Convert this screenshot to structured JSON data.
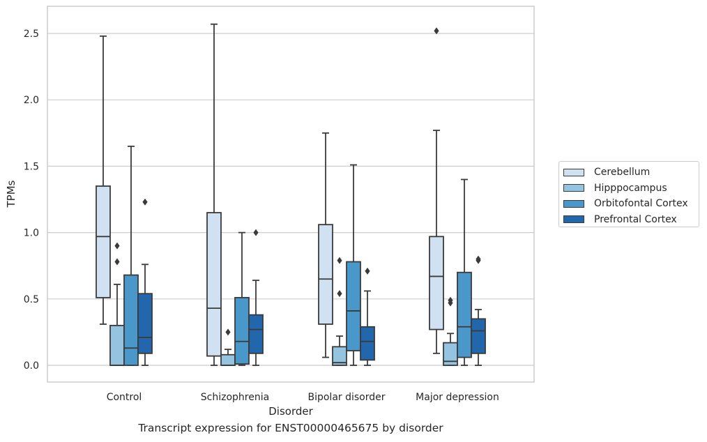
{
  "caption": "Transcript expression for ENST00000465675 by disorder",
  "chart_data": {
    "type": "box",
    "xlabel": "Disorder",
    "ylabel": "TPMs",
    "ylim": [
      -0.12,
      2.71
    ],
    "yticks": [
      0.0,
      0.5,
      1.0,
      1.5,
      2.0,
      2.5
    ],
    "ytick_labels": [
      "0.0",
      "0.5",
      "1.0",
      "1.5",
      "2.0",
      "2.5"
    ],
    "grid": "horizontal",
    "legend_position": "right",
    "categories": [
      "Control",
      "Schizophrenia",
      "Bipolar disorder",
      "Major depression"
    ],
    "series": [
      {
        "name": "Cerebellum",
        "color": "#d0e1f2",
        "boxes": [
          {
            "whisker_low": 0.31,
            "q1": 0.51,
            "median": 0.97,
            "q3": 1.35,
            "whisker_high": 2.48,
            "outliers": []
          },
          {
            "whisker_low": 0.0,
            "q1": 0.07,
            "median": 0.43,
            "q3": 1.15,
            "whisker_high": 2.57,
            "outliers": []
          },
          {
            "whisker_low": 0.06,
            "q1": 0.31,
            "median": 0.65,
            "q3": 1.06,
            "whisker_high": 1.75,
            "outliers": []
          },
          {
            "whisker_low": 0.09,
            "q1": 0.27,
            "median": 0.67,
            "q3": 0.97,
            "whisker_high": 1.77,
            "outliers": [
              2.52
            ]
          }
        ]
      },
      {
        "name": "Hipppocampus",
        "color": "#94c4df",
        "boxes": [
          {
            "whisker_low": 0.0,
            "q1": 0.0,
            "median": 0.0,
            "q3": 0.3,
            "whisker_high": 0.61,
            "outliers": [
              0.9,
              0.78
            ]
          },
          {
            "whisker_low": 0.0,
            "q1": 0.0,
            "median": 0.0,
            "q3": 0.08,
            "whisker_high": 0.12,
            "outliers": [
              0.25
            ]
          },
          {
            "whisker_low": 0.0,
            "q1": 0.0,
            "median": 0.02,
            "q3": 0.14,
            "whisker_high": 0.22,
            "outliers": [
              0.79,
              0.54
            ]
          },
          {
            "whisker_low": 0.0,
            "q1": 0.0,
            "median": 0.03,
            "q3": 0.17,
            "whisker_high": 0.24,
            "outliers": [
              0.49,
              0.47
            ]
          }
        ]
      },
      {
        "name": "Orbitofontal Cortex",
        "color": "#4a98c9",
        "boxes": [
          {
            "whisker_low": 0.0,
            "q1": 0.0,
            "median": 0.13,
            "q3": 0.68,
            "whisker_high": 1.65,
            "outliers": []
          },
          {
            "whisker_low": 0.0,
            "q1": 0.01,
            "median": 0.18,
            "q3": 0.51,
            "whisker_high": 1.0,
            "outliers": []
          },
          {
            "whisker_low": 0.0,
            "q1": 0.11,
            "median": 0.41,
            "q3": 0.78,
            "whisker_high": 1.51,
            "outliers": []
          },
          {
            "whisker_low": 0.0,
            "q1": 0.06,
            "median": 0.29,
            "q3": 0.7,
            "whisker_high": 1.4,
            "outliers": []
          }
        ]
      },
      {
        "name": "Prefrontal Cortex",
        "color": "#2266ac",
        "boxes": [
          {
            "whisker_low": 0.0,
            "q1": 0.09,
            "median": 0.21,
            "q3": 0.54,
            "whisker_high": 0.76,
            "outliers": [
              1.23
            ]
          },
          {
            "whisker_low": 0.0,
            "q1": 0.09,
            "median": 0.27,
            "q3": 0.38,
            "whisker_high": 0.64,
            "outliers": [
              1.0
            ]
          },
          {
            "whisker_low": 0.0,
            "q1": 0.04,
            "median": 0.18,
            "q3": 0.29,
            "whisker_high": 0.56,
            "outliers": [
              0.71
            ]
          },
          {
            "whisker_low": 0.0,
            "q1": 0.09,
            "median": 0.26,
            "q3": 0.35,
            "whisker_high": 0.42,
            "outliers": [
              0.8,
              0.79
            ]
          }
        ]
      }
    ]
  }
}
